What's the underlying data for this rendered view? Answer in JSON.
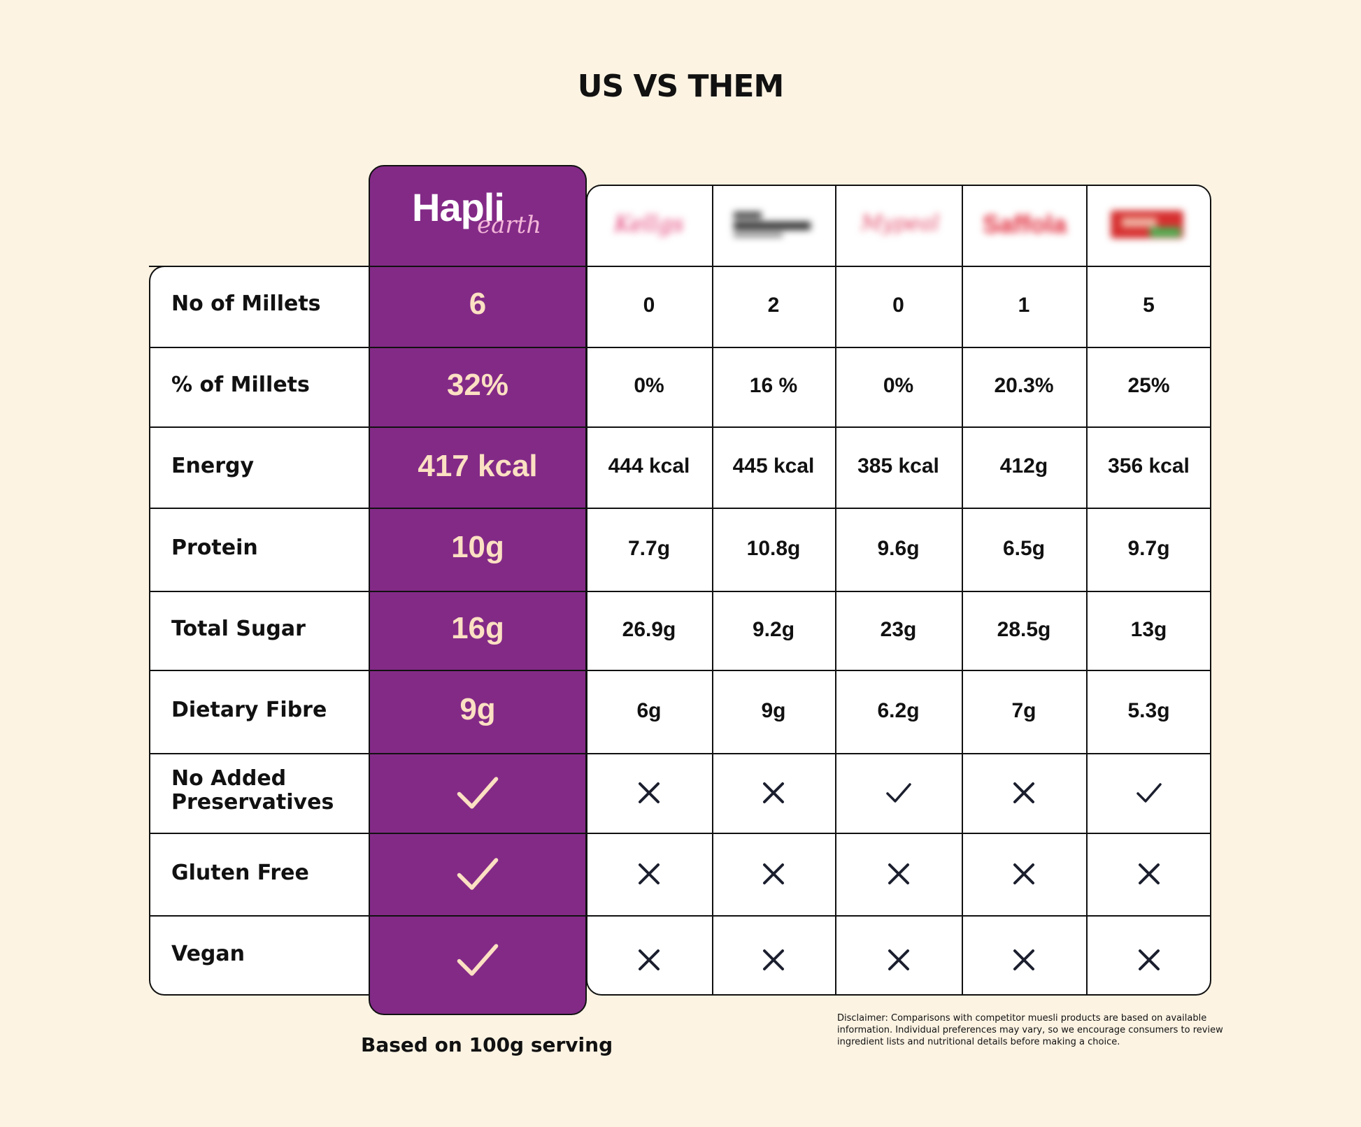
{
  "title": "US VS THEM",
  "brand": {
    "name": "Hapli",
    "tagline": "earth",
    "label_color": "#832a87"
  },
  "competitors": [
    {
      "logo": "blurred-competitor-1",
      "color": "#e0306a"
    },
    {
      "logo": "blurred-competitor-2",
      "color": "#333333"
    },
    {
      "logo": "blurred-competitor-3",
      "color": "#e04060"
    },
    {
      "logo": "blurred-competitor-4",
      "color": "#e02a3a"
    },
    {
      "logo": "blurred-competitor-5",
      "color": "#d63030"
    }
  ],
  "rows": [
    {
      "label": "No of Millets",
      "hapli": "6",
      "values": [
        "0",
        "2",
        "0",
        "1",
        "5"
      ]
    },
    {
      "label": "% of Millets",
      "hapli": "32%",
      "values": [
        "0%",
        "16 %",
        "0%",
        "20.3%",
        "25%"
      ]
    },
    {
      "label": "Energy",
      "hapli": "417 kcal",
      "values": [
        "444 kcal",
        "445 kcal",
        "385 kcal",
        "412g",
        "356 kcal"
      ]
    },
    {
      "label": "Protein",
      "hapli": "10g",
      "values": [
        "7.7g",
        "10.8g",
        "9.6g",
        "6.5g",
        "9.7g"
      ]
    },
    {
      "label": "Total Sugar",
      "hapli": "16g",
      "values": [
        "26.9g",
        "9.2g",
        "23g",
        "28.5g",
        "13g"
      ]
    },
    {
      "label": "Dietary Fibre",
      "hapli": "9g",
      "values": [
        "6g",
        "9g",
        "6.2g",
        "7g",
        "5.3g"
      ]
    },
    {
      "label_line1": "No Added",
      "label_line2": "Preservatives",
      "hapli": "check",
      "values": [
        "cross",
        "cross",
        "check",
        "cross",
        "check"
      ]
    },
    {
      "label": "Gluten Free",
      "hapli": "check",
      "values": [
        "cross",
        "cross",
        "cross",
        "cross",
        "cross"
      ]
    },
    {
      "label": "Vegan",
      "hapli": "check",
      "values": [
        "cross",
        "cross",
        "cross",
        "cross",
        "cross"
      ]
    }
  ],
  "footnote": "Based on 100g serving",
  "disclaimer": "Disclaimer: Comparisons with competitor muesli products are based on available information. Individual preferences may vary, so we encourage consumers to review ingredient lists and nutritional details before making a choice."
}
